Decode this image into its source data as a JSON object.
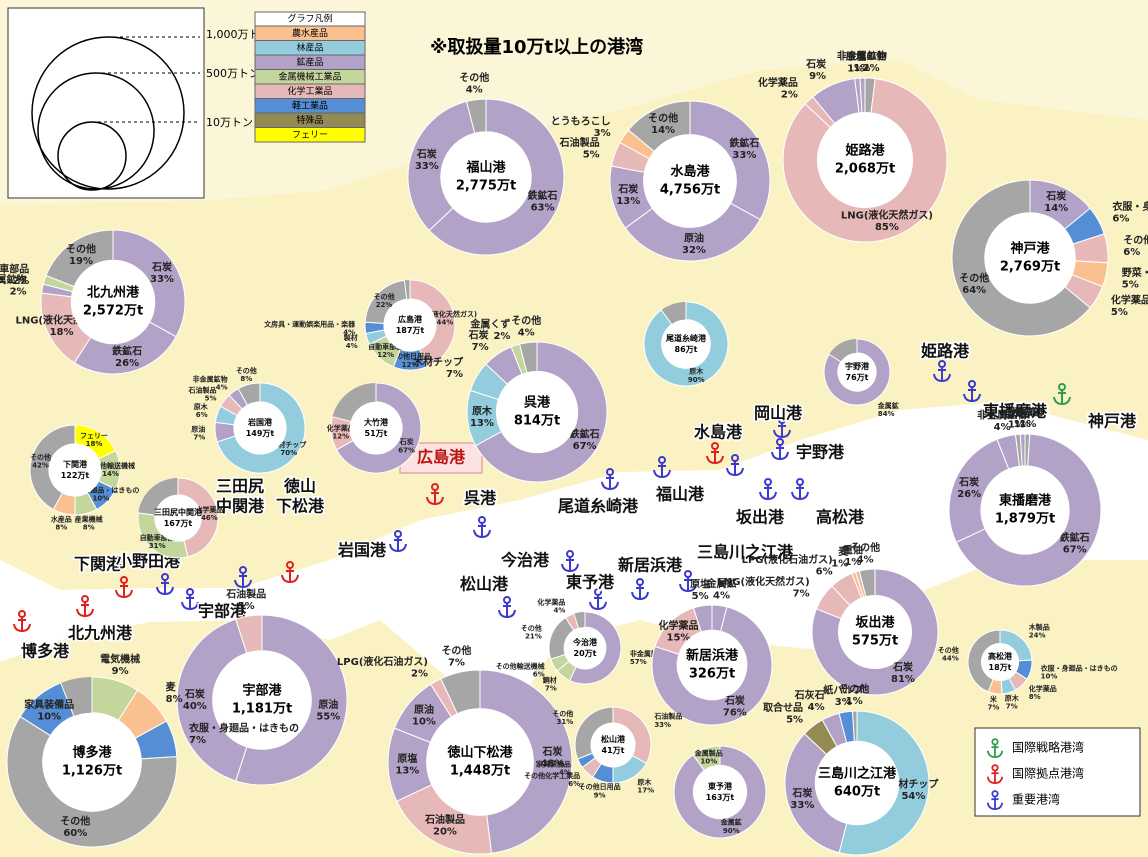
{
  "title": "※取扱量10万t以上の港湾",
  "size_legend": {
    "labels": [
      "1,000万トン",
      "500万トン",
      "10万トン"
    ]
  },
  "legend": {
    "title": "グラフ凡例",
    "items": [
      {
        "name": "農水産品",
        "color": "#fac090"
      },
      {
        "name": "林産品",
        "color": "#93cddd"
      },
      {
        "name": "鉱産品",
        "color": "#b3a2c7"
      },
      {
        "name": "金属機械工業品",
        "color": "#c3d69b"
      },
      {
        "name": "化学工業品",
        "color": "#e6b8b7"
      },
      {
        "name": "軽工業品",
        "color": "#558ed5"
      },
      {
        "name": "特殊品",
        "color": "#948a54"
      },
      {
        "name": "フェリー",
        "color": "#ffff00"
      }
    ]
  },
  "harbor_legend": [
    {
      "label": "国際戦略港湾",
      "color": "#2e9e4e"
    },
    {
      "label": "国際拠点港湾",
      "color": "#e02020"
    },
    {
      "label": "重要港湾",
      "color": "#3a3ad0"
    }
  ],
  "highlight": "広島港",
  "donuts": [
    {
      "name": "北九州港",
      "total": "2,572万t",
      "segments": [
        {
          "name": "石炭",
          "value": 33,
          "value_label": "33%",
          "color": "#b3a2c7"
        },
        {
          "name": "鉄鉱石",
          "value": 26,
          "value_label": "26%",
          "color": "#b3a2c7"
        },
        {
          "name": "LNG(液化天然ガス)",
          "value": 18,
          "value_label": "18%",
          "color": "#e6b8b7"
        },
        {
          "name": "非金属鉱物",
          "value": 2,
          "value_label": "2%",
          "color": "#b3a2c7"
        },
        {
          "name": "自動車部品",
          "value": 2,
          "value_label": "2%",
          "color": "#c3d69b"
        },
        {
          "name": "その他",
          "value": 19,
          "value_label": "19%",
          "color": "#a6a6a6"
        }
      ]
    },
    {
      "name": "福山港",
      "total": "2,775万t",
      "segments": [
        {
          "name": "鉄鉱石",
          "value": 63,
          "value_label": "63%",
          "color": "#b3a2c7"
        },
        {
          "name": "石炭",
          "value": 33,
          "value_label": "33%",
          "color": "#b3a2c7"
        },
        {
          "name": "その他",
          "value": 4,
          "value_label": "4%",
          "color": "#a6a6a6"
        }
      ]
    },
    {
      "name": "水島港",
      "total": "4,756万t",
      "segments": [
        {
          "name": "鉄鉱石",
          "value": 33,
          "value_label": "33%",
          "color": "#b3a2c7"
        },
        {
          "name": "原油",
          "value": 32,
          "value_label": "32%",
          "color": "#b3a2c7"
        },
        {
          "name": "石炭",
          "value": 13,
          "value_label": "13%",
          "color": "#b3a2c7"
        },
        {
          "name": "石油製品",
          "value": 5,
          "value_label": "5%",
          "color": "#e6b8b7"
        },
        {
          "name": "とうもろこし",
          "value": 3,
          "value_label": "3%",
          "color": "#fac090"
        },
        {
          "name": "その他",
          "value": 14,
          "value_label": "14%",
          "color": "#a6a6a6"
        }
      ]
    },
    {
      "name": "姫路港",
      "total": "2,068万t",
      "segments": [
        {
          "name": "その他",
          "value": 2,
          "value_label": "2%",
          "color": "#a6a6a6"
        },
        {
          "name": "LNG(液化天然ガス)",
          "value": 85,
          "value_label": "85%",
          "color": "#e6b8b7"
        },
        {
          "name": "化学薬品",
          "value": 2,
          "value_label": "2%",
          "color": "#e6b8b7"
        },
        {
          "name": "石炭",
          "value": 9,
          "value_label": "9%",
          "color": "#b3a2c7"
        },
        {
          "name": "原塩",
          "value": 1,
          "value_label": "1%",
          "color": "#b3a2c7"
        },
        {
          "name": "非金属鉱物",
          "value": 1,
          "value_label": "1%",
          "color": "#b3a2c7"
        }
      ]
    },
    {
      "name": "神戸港",
      "total": "2,769万t",
      "segments": [
        {
          "name": "石炭",
          "value": 14,
          "value_label": "14%",
          "color": "#b3a2c7"
        },
        {
          "name": "衣服・身廻品・はきもの",
          "value": 6,
          "value_label": "6%",
          "color": "#558ed5"
        },
        {
          "name": "その他化学工業品",
          "value": 6,
          "value_label": "6%",
          "color": "#e6b8b7"
        },
        {
          "name": "野菜・果物",
          "value": 5,
          "value_label": "5%",
          "color": "#fac090"
        },
        {
          "name": "化学薬品",
          "value": 5,
          "value_label": "5%",
          "color": "#e6b8b7"
        },
        {
          "name": "その他",
          "value": 64,
          "value_label": "64%",
          "color": "#a6a6a6"
        }
      ]
    },
    {
      "name": "広島港",
      "total": "187万t",
      "segments": [
        {
          "name": "LNG(液化天然ガス)",
          "value": 44,
          "value_label": "44%",
          "color": "#e6b8b7"
        },
        {
          "name": "その他日用品",
          "value": 12,
          "value_label": "12%",
          "color": "#558ed5"
        },
        {
          "name": "自動車部品",
          "value": 12,
          "value_label": "12%",
          "color": "#c3d69b"
        },
        {
          "name": "製材",
          "value": 4,
          "value_label": "4%",
          "color": "#93cddd"
        },
        {
          "name": "文房具・運動娯楽用品・楽器",
          "value": 4,
          "value_label": "4%",
          "color": "#558ed5"
        },
        {
          "name": "その他",
          "value": 22,
          "value_label": "22%",
          "color": "#a6a6a6"
        }
      ]
    },
    {
      "name": "呉港",
      "total": "814万t",
      "segments": [
        {
          "name": "鉄鉱石",
          "value": 67,
          "value_label": "67%",
          "color": "#b3a2c7"
        },
        {
          "name": "原木",
          "value": 13,
          "value_label": "13%",
          "color": "#93cddd"
        },
        {
          "name": "木材チップ",
          "value": 7,
          "value_label": "7%",
          "color": "#93cddd"
        },
        {
          "name": "石炭",
          "value": 7,
          "value_label": "7%",
          "color": "#b3a2c7"
        },
        {
          "name": "金属くず",
          "value": 2,
          "value_label": "2%",
          "color": "#c3d69b"
        },
        {
          "name": "その他",
          "value": 4,
          "value_label": "4%",
          "color": "#a6a6a6"
        }
      ]
    },
    {
      "name": "尾道糸崎港",
      "total": "86万t",
      "segments": [
        {
          "name": "原木",
          "value": 90,
          "value_label": "90%",
          "color": "#93cddd"
        }
      ]
    },
    {
      "name": "岩国港",
      "total": "149万t",
      "segments": [
        {
          "name": "木材チップ",
          "value": 70,
          "value_label": "70%",
          "color": "#93cddd"
        },
        {
          "name": "原油",
          "value": 7,
          "value_label": "7%",
          "color": "#b3a2c7"
        },
        {
          "name": "原木",
          "value": 6,
          "value_label": "6%",
          "color": "#93cddd"
        },
        {
          "name": "石油製品",
          "value": 5,
          "value_label": "5%",
          "color": "#e6b8b7"
        },
        {
          "name": "非金属鉱物",
          "value": 4,
          "value_label": "4%",
          "color": "#b3a2c7"
        },
        {
          "name": "その他",
          "value": 8,
          "value_label": "8%",
          "color": "#a6a6a6"
        }
      ]
    },
    {
      "name": "大竹港",
      "total": "51万t",
      "segments": [
        {
          "name": "石炭",
          "value": 67,
          "value_label": "67%",
          "color": "#b3a2c7"
        },
        {
          "name": "化学薬品",
          "value": 12,
          "value_label": "12%",
          "color": "#e6b8b7"
        }
      ]
    },
    {
      "name": "下関港",
      "total": "122万t",
      "segments": [
        {
          "name": "フェリー",
          "value": 18,
          "value_label": "18%",
          "color": "#ffff00"
        },
        {
          "name": "その他輸送機械",
          "value": 14,
          "value_label": "14%",
          "color": "#c3d69b"
        },
        {
          "name": "衣服・身廻品・はきもの",
          "value": 10,
          "value_label": "10%",
          "color": "#558ed5"
        },
        {
          "name": "産業機械",
          "value": 8,
          "value_label": "8%",
          "color": "#c3d69b"
        },
        {
          "name": "水産品",
          "value": 8,
          "value_label": "8%",
          "color": "#fac090"
        },
        {
          "name": "その他",
          "value": 42,
          "value_label": "42%",
          "color": "#a6a6a6"
        }
      ]
    },
    {
      "name": "三田尻中関港",
      "total": "167万t",
      "segments": [
        {
          "name": "化学薬品",
          "value": 46,
          "value_label": "46%",
          "color": "#e6b8b7"
        },
        {
          "name": "自動車部品",
          "value": 31,
          "value_label": "31%",
          "color": "#c3d69b"
        }
      ]
    },
    {
      "name": "宇野港",
      "total": "76万t",
      "segments": [
        {
          "name": "金属鉱",
          "value": 84,
          "value_label": "84%",
          "color": "#b3a2c7"
        }
      ]
    },
    {
      "name": "東播磨港",
      "total": "1,879万t",
      "segments": [
        {
          "name": "その他",
          "value": 1,
          "value_label": "1%",
          "color": "#a6a6a6"
        },
        {
          "name": "鉄鉱石",
          "value": 67,
          "value_label": "67%",
          "color": "#b3a2c7"
        },
        {
          "name": "石炭",
          "value": 26,
          "value_label": "26%",
          "color": "#b3a2c7"
        },
        {
          "name": "非金属鉱物",
          "value": 4,
          "value_label": "4%",
          "color": "#b3a2c7"
        },
        {
          "name": "水",
          "value": 1,
          "value_label": "1%",
          "color": "#a6a6a6"
        },
        {
          "name": "金属鉱",
          "value": 1,
          "value_label": "1%",
          "color": "#b3a2c7"
        }
      ]
    },
    {
      "name": "坂出港",
      "total": "575万t",
      "segments": [
        {
          "name": "石炭",
          "value": 81,
          "value_label": "81%",
          "color": "#b3a2c7"
        },
        {
          "name": "LNG(液化天然ガス)",
          "value": 7,
          "value_label": "7%",
          "color": "#e6b8b7"
        },
        {
          "name": "LPG(液化石油ガス)",
          "value": 6,
          "value_label": "6%",
          "color": "#e6b8b7"
        },
        {
          "name": "麦",
          "value": 1,
          "value_label": "1%",
          "color": "#fac090"
        },
        {
          "name": "重油",
          "value": 1,
          "value_label": "1%",
          "color": "#e6b8b7"
        },
        {
          "name": "その他",
          "value": 4,
          "value_label": "4%",
          "color": "#a6a6a6"
        }
      ]
    },
    {
      "name": "宇部港",
      "total": "1,181万t",
      "segments": [
        {
          "name": "原油",
          "value": 55,
          "value_label": "55%",
          "color": "#b3a2c7"
        },
        {
          "name": "石炭",
          "value": 40,
          "value_label": "40%",
          "color": "#b3a2c7"
        },
        {
          "name": "石油製品",
          "value": 5,
          "value_label": "5%",
          "color": "#e6b8b7"
        }
      ]
    },
    {
      "name": "今治港",
      "total": "20万t",
      "segments": [
        {
          "name": "非金属鉱物",
          "value": 57,
          "value_label": "57%",
          "color": "#b3a2c7"
        },
        {
          "name": "鋼材",
          "value": 7,
          "value_label": "7%",
          "color": "#c3d69b"
        },
        {
          "name": "その他輸送機械",
          "value": 6,
          "value_label": "6%",
          "color": "#c3d69b"
        },
        {
          "name": "その他",
          "value": 21,
          "value_label": "21%",
          "color": "#a6a6a6"
        },
        {
          "name": "化学薬品",
          "value": 4,
          "value_label": "4%",
          "color": "#e6b8b7"
        }
      ]
    },
    {
      "name": "新居浜港",
      "total": "326万t",
      "segments": [
        {
          "name": "金属鉱",
          "value": 4,
          "value_label": "4%",
          "color": "#b3a2c7"
        },
        {
          "name": "石炭",
          "value": 76,
          "value_label": "76%",
          "color": "#b3a2c7"
        },
        {
          "name": "化学薬品",
          "value": 15,
          "value_label": "15%",
          "color": "#e6b8b7"
        },
        {
          "name": "原塩",
          "value": 5,
          "value_label": "5%",
          "color": "#b3a2c7"
        }
      ]
    },
    {
      "name": "高松港",
      "total": "18万t",
      "segments": [
        {
          "name": "木製品",
          "value": 24,
          "value_label": "24%",
          "color": "#93cddd"
        },
        {
          "name": "衣服・身廻品・はきもの",
          "value": 10,
          "value_label": "10%",
          "color": "#558ed5"
        },
        {
          "name": "化学薬品",
          "value": 8,
          "value_label": "8%",
          "color": "#e6b8b7"
        },
        {
          "name": "原木",
          "value": 7,
          "value_label": "7%",
          "color": "#93cddd"
        },
        {
          "name": "米",
          "value": 7,
          "value_label": "7%",
          "color": "#fac090"
        },
        {
          "name": "その他",
          "value": 44,
          "value_label": "44%",
          "color": "#a6a6a6"
        }
      ]
    },
    {
      "name": "博多港",
      "total": "1,126万t",
      "segments": [
        {
          "name": "電気機械",
          "value": 9,
          "value_label": "9%",
          "color": "#c3d69b"
        },
        {
          "name": "麦",
          "value": 8,
          "value_label": "8%",
          "color": "#fac090"
        },
        {
          "name": "衣服・身廻品・はきもの",
          "value": 7,
          "value_label": "7%",
          "color": "#558ed5"
        },
        {
          "name": "その他",
          "value": 60,
          "value_label": "60%",
          "color": "#a6a6a6"
        },
        {
          "name": "家具装備品",
          "value": 10,
          "value_label": "10%",
          "color": "#558ed5"
        }
      ]
    },
    {
      "name": "徳山下松港",
      "total": "1,448万t",
      "segments": [
        {
          "name": "石炭",
          "value": 48,
          "value_label": "48%",
          "color": "#b3a2c7"
        },
        {
          "name": "石油製品",
          "value": 20,
          "value_label": "20%",
          "color": "#e6b8b7"
        },
        {
          "name": "原塩",
          "value": 13,
          "value_label": "13%",
          "color": "#b3a2c7"
        },
        {
          "name": "原油",
          "value": 10,
          "value_label": "10%",
          "color": "#b3a2c7"
        },
        {
          "name": "LPG(液化石油ガス)",
          "value": 2,
          "value_label": "2%",
          "color": "#e6b8b7"
        },
        {
          "name": "その他",
          "value": 7,
          "value_label": "7%",
          "color": "#a6a6a6"
        }
      ]
    },
    {
      "name": "松山港",
      "total": "41万t",
      "segments": [
        {
          "name": "石油製品",
          "value": 33,
          "value_label": "33%",
          "color": "#e6b8b7"
        },
        {
          "name": "原木",
          "value": 17,
          "value_label": "17%",
          "color": "#93cddd"
        },
        {
          "name": "その他日用品",
          "value": 9,
          "value_label": "9%",
          "color": "#558ed5"
        },
        {
          "name": "その他化学工業品",
          "value": 6,
          "value_label": "6%",
          "color": "#e6b8b7"
        },
        {
          "name": "家具装備品",
          "value": 4,
          "value_label": "4%",
          "color": "#558ed5"
        },
        {
          "name": "その他",
          "value": 31,
          "value_label": "31%",
          "color": "#a6a6a6"
        }
      ]
    },
    {
      "name": "東予港",
      "total": "163万t",
      "segments": [
        {
          "name": "金属鉱",
          "value": 90,
          "value_label": "90%",
          "color": "#b3a2c7"
        },
        {
          "name": "金属製品",
          "value": 10,
          "value_label": "10%",
          "color": "#c3d69b"
        }
      ]
    },
    {
      "name": "三島川之江港",
      "total": "640万t",
      "segments": [
        {
          "name": "木材チップ",
          "value": 54,
          "value_label": "54%",
          "color": "#93cddd"
        },
        {
          "name": "石炭",
          "value": 33,
          "value_label": "33%",
          "color": "#b3a2c7"
        },
        {
          "name": "取合せ品",
          "value": 5,
          "value_label": "5%",
          "color": "#948a54"
        },
        {
          "name": "石灰石",
          "value": 4,
          "value_label": "4%",
          "color": "#b3a2c7"
        },
        {
          "name": "紙パルプ",
          "value": 3,
          "value_label": "3%",
          "color": "#558ed5"
        },
        {
          "name": "その他",
          "value": 1,
          "value_label": "1%",
          "color": "#a6a6a6"
        }
      ]
    }
  ],
  "port_labels": [
    [
      "博多港"
    ],
    [
      "北九州港"
    ],
    [
      "下関港"
    ],
    [
      "小野田港"
    ],
    [
      "宇部港"
    ],
    [
      "三田尻",
      "中関港"
    ],
    [
      "徳山",
      "下松港"
    ],
    [
      "岩国港"
    ],
    [
      "呉港"
    ],
    [
      "尾道糸崎港"
    ],
    [
      "福山港"
    ],
    [
      "今治港"
    ],
    [
      "東予港"
    ],
    [
      "松山港"
    ],
    [
      "新居浜港"
    ],
    [
      "三島川之江港"
    ],
    [
      "坂出港"
    ],
    [
      "高松港"
    ],
    [
      "水島港"
    ],
    [
      "宇野港"
    ],
    [
      "岡山港"
    ],
    [
      "姫路港"
    ],
    [
      "東播磨港"
    ],
    [
      "神戸港"
    ]
  ]
}
